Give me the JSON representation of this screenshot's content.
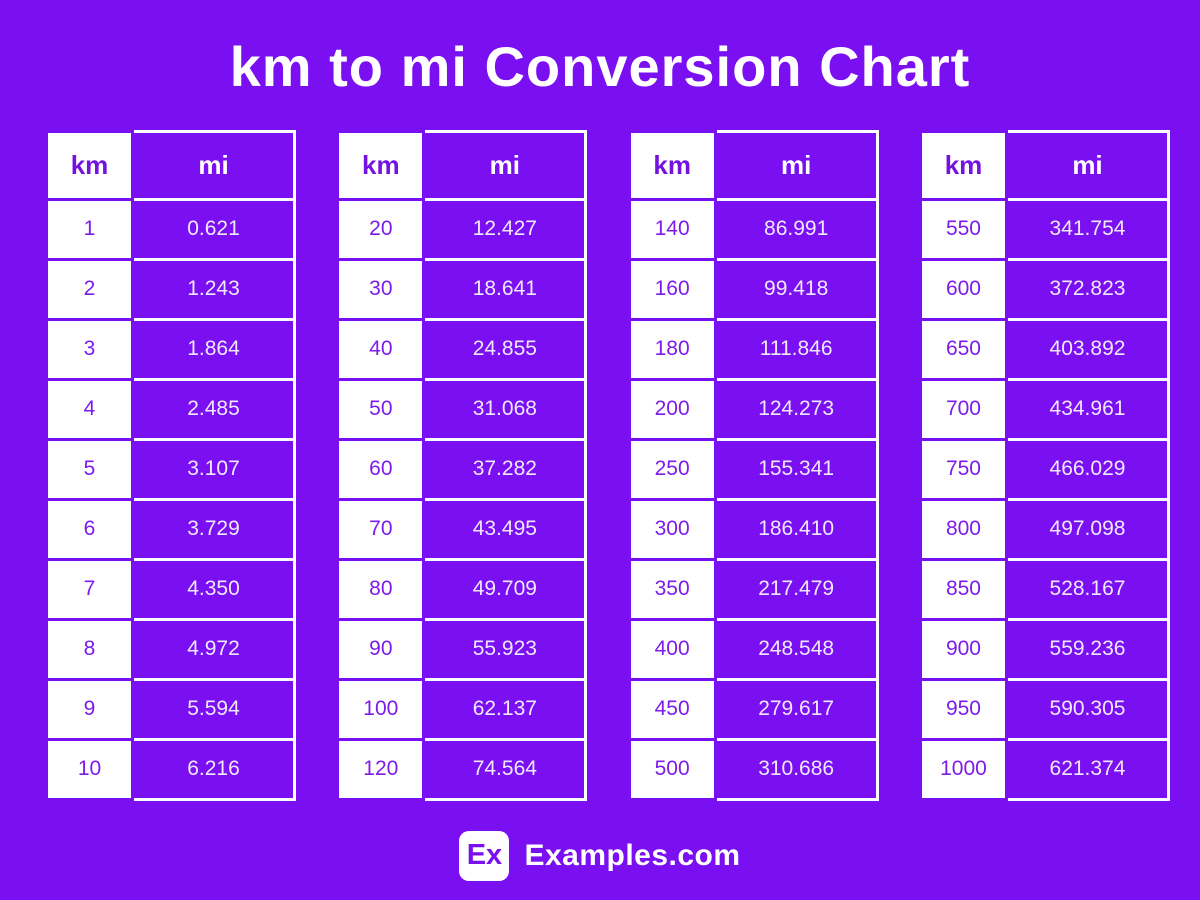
{
  "page": {
    "title": "km to mi Conversion Chart",
    "background_color": "#7a0ff2",
    "table_border_color": "#ffffff",
    "km_cell_bg": "#ffffff",
    "km_text_color": "#7d1beb",
    "mi_cell_bg": "#7a0ff2",
    "mi_text_color": "#f0e8fc"
  },
  "footer": {
    "logo_text": "Ex",
    "brand": "Examples.com"
  },
  "chart_data": {
    "type": "table",
    "title": "km to mi Conversion Chart",
    "columns": [
      "km",
      "mi"
    ],
    "tables": [
      {
        "rows": [
          [
            "1",
            "0.621"
          ],
          [
            "2",
            "1.243"
          ],
          [
            "3",
            "1.864"
          ],
          [
            "4",
            "2.485"
          ],
          [
            "5",
            "3.107"
          ],
          [
            "6",
            "3.729"
          ],
          [
            "7",
            "4.350"
          ],
          [
            "8",
            "4.972"
          ],
          [
            "9",
            "5.594"
          ],
          [
            "10",
            "6.216"
          ]
        ]
      },
      {
        "rows": [
          [
            "20",
            "12.427"
          ],
          [
            "30",
            "18.641"
          ],
          [
            "40",
            "24.855"
          ],
          [
            "50",
            "31.068"
          ],
          [
            "60",
            "37.282"
          ],
          [
            "70",
            "43.495"
          ],
          [
            "80",
            "49.709"
          ],
          [
            "90",
            "55.923"
          ],
          [
            "100",
            "62.137"
          ],
          [
            "120",
            "74.564"
          ]
        ]
      },
      {
        "rows": [
          [
            "140",
            "86.991"
          ],
          [
            "160",
            "99.418"
          ],
          [
            "180",
            "111.846"
          ],
          [
            "200",
            "124.273"
          ],
          [
            "250",
            "155.341"
          ],
          [
            "300",
            "186.410"
          ],
          [
            "350",
            "217.479"
          ],
          [
            "400",
            "248.548"
          ],
          [
            "450",
            "279.617"
          ],
          [
            "500",
            "310.686"
          ]
        ]
      },
      {
        "rows": [
          [
            "550",
            "341.754"
          ],
          [
            "600",
            "372.823"
          ],
          [
            "650",
            "403.892"
          ],
          [
            "700",
            "434.961"
          ],
          [
            "750",
            "466.029"
          ],
          [
            "800",
            "497.098"
          ],
          [
            "850",
            "528.167"
          ],
          [
            "900",
            "559.236"
          ],
          [
            "950",
            "590.305"
          ],
          [
            "1000",
            "621.374"
          ]
        ]
      }
    ]
  }
}
